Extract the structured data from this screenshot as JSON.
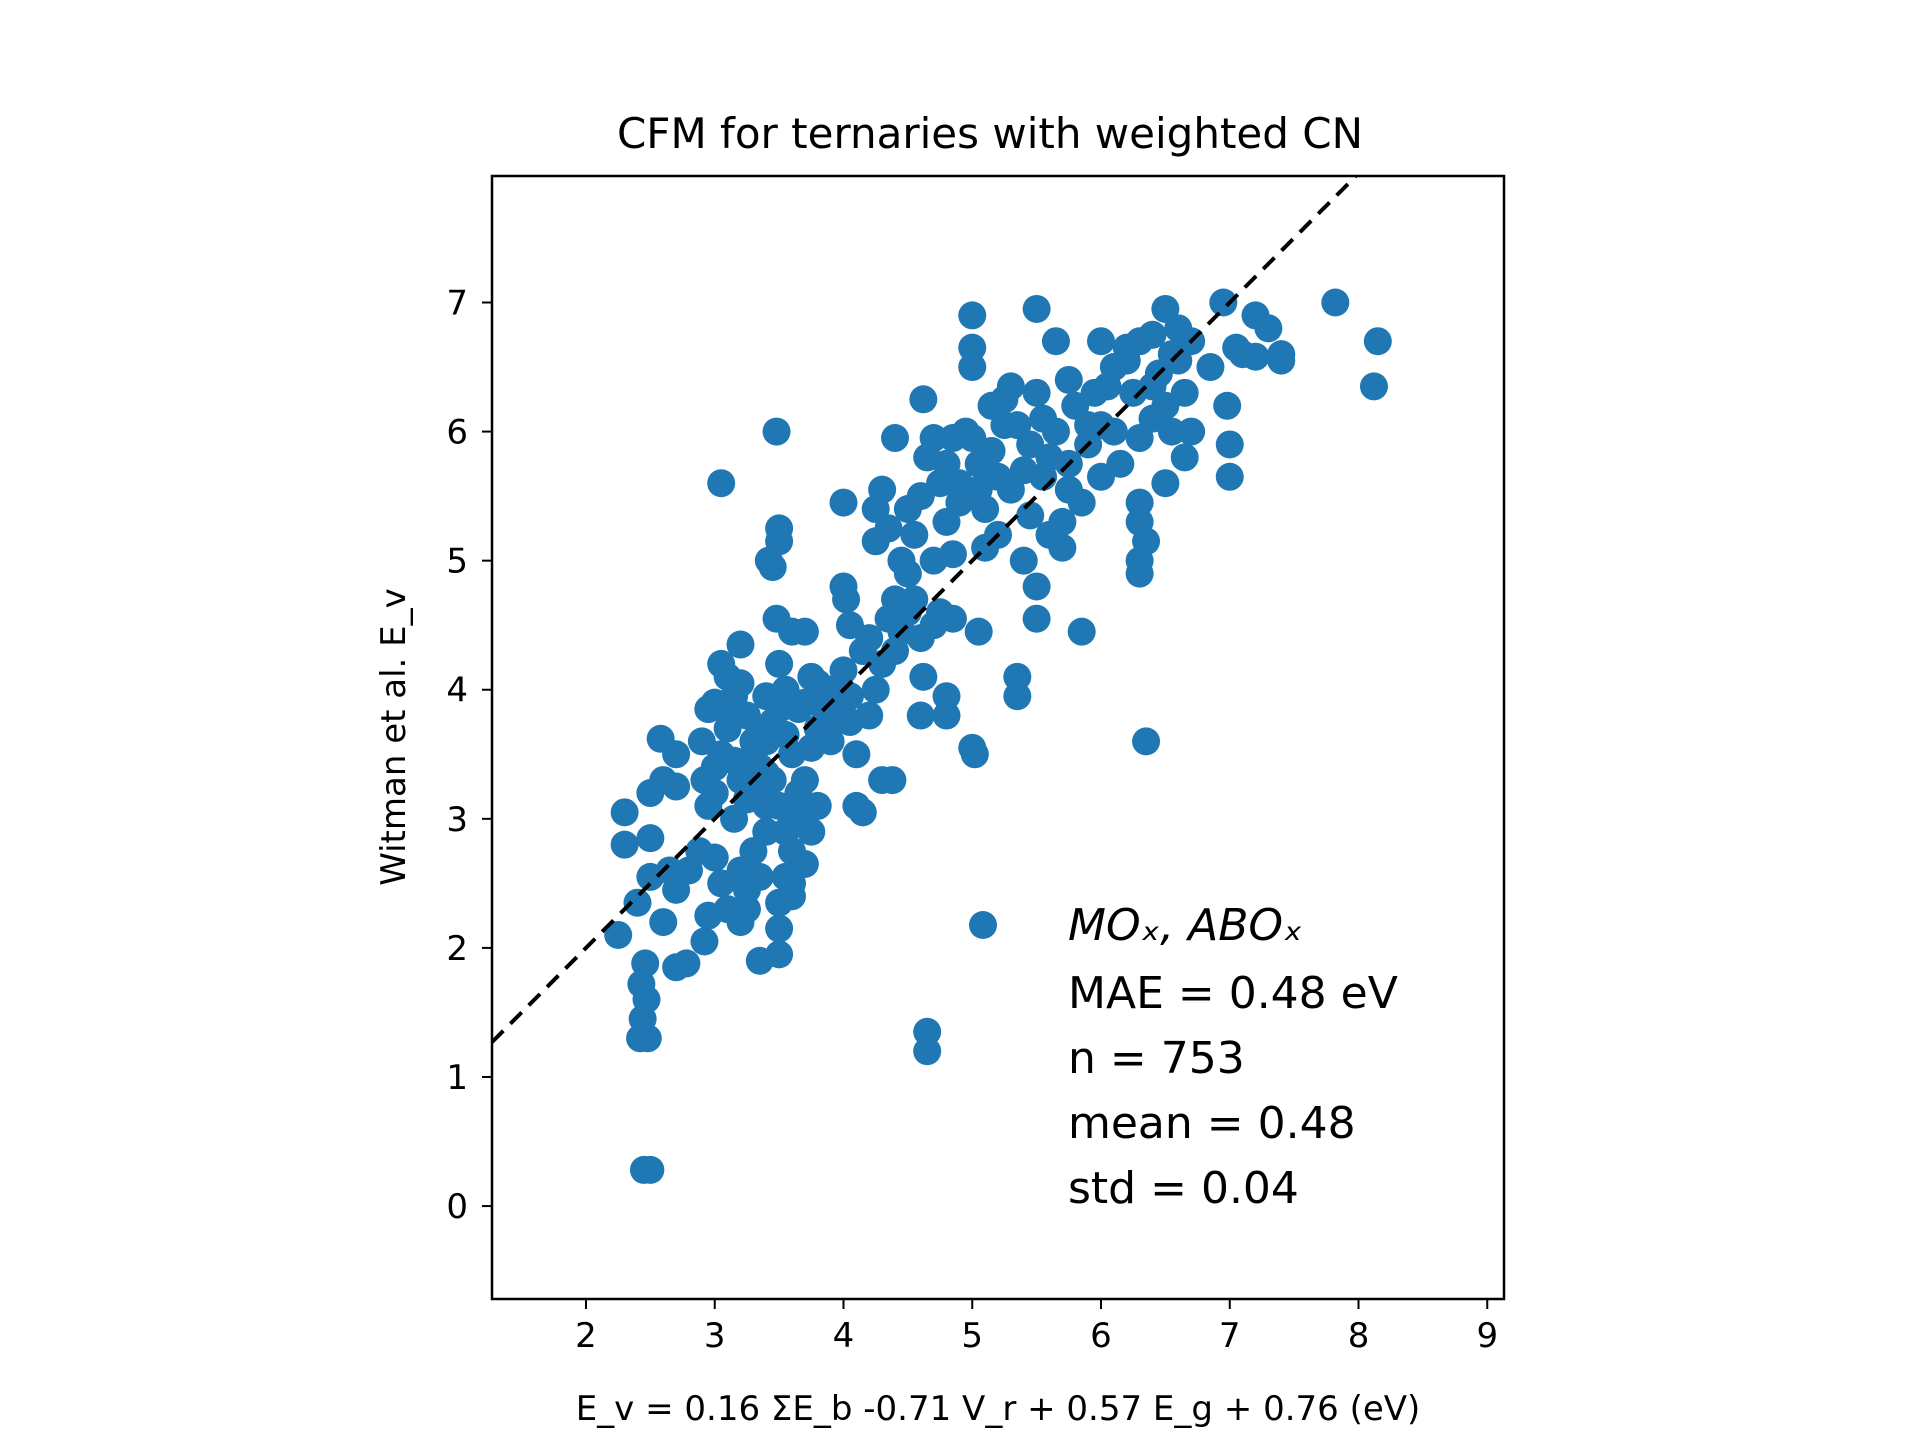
{
  "chart_data": {
    "type": "scatter",
    "title": "CFM for ternaries with weighted CN",
    "xlabel": "E_v = 0.16 ΣE_b -0.71 V_r + 0.57 E_g + 0.76 (eV)",
    "ylabel": "Witman et al. E_v",
    "xlim": [
      1.27,
      9.13
    ],
    "ylim": [
      -0.72,
      7.98
    ],
    "xticks": [
      2,
      3,
      4,
      5,
      6,
      7,
      8,
      9
    ],
    "yticks": [
      0,
      1,
      2,
      3,
      4,
      5,
      6,
      7
    ],
    "grid": false,
    "marker_color": "#1f77b4",
    "reference_line": {
      "style": "dashed",
      "color": "#000000",
      "slope": 1,
      "intercept": 0
    },
    "legend": {
      "placement": "lower-right",
      "series_name": "MOₓ, ABOₓ",
      "stats": [
        "MAE = 0.48 eV",
        "n = 753",
        "mean = 0.48",
        "std = 0.04"
      ]
    },
    "series": [
      {
        "name": "MOₓ, ABOₓ",
        "points": [
          [
            2.45,
            0.28
          ],
          [
            2.5,
            0.28
          ],
          [
            2.42,
            1.3
          ],
          [
            2.48,
            1.3
          ],
          [
            2.44,
            1.45
          ],
          [
            2.47,
            1.6
          ],
          [
            2.43,
            1.72
          ],
          [
            2.46,
            1.88
          ],
          [
            2.25,
            2.1
          ],
          [
            2.4,
            2.35
          ],
          [
            2.5,
            2.55
          ],
          [
            2.6,
            2.2
          ],
          [
            2.3,
            2.8
          ],
          [
            2.3,
            3.05
          ],
          [
            2.5,
            2.85
          ],
          [
            2.5,
            3.2
          ],
          [
            2.6,
            3.3
          ],
          [
            2.58,
            3.62
          ],
          [
            2.7,
            3.5
          ],
          [
            2.7,
            3.25
          ],
          [
            2.65,
            2.6
          ],
          [
            2.7,
            2.45
          ],
          [
            2.7,
            1.85
          ],
          [
            2.78,
            1.88
          ],
          [
            2.92,
            2.05
          ],
          [
            2.95,
            2.25
          ],
          [
            3.05,
            5.6
          ],
          [
            2.95,
            3.85
          ],
          [
            2.9,
            3.6
          ],
          [
            2.92,
            3.3
          ],
          [
            2.95,
            3.1
          ],
          [
            3.0,
            2.7
          ],
          [
            3.05,
            2.5
          ],
          [
            3.1,
            2.3
          ],
          [
            3.2,
            2.2
          ],
          [
            3.25,
            2.3
          ],
          [
            3.35,
            1.9
          ],
          [
            3.35,
            2.55
          ],
          [
            3.4,
            2.9
          ],
          [
            3.4,
            3.1
          ],
          [
            3.05,
            4.2
          ],
          [
            3.1,
            4.1
          ],
          [
            3.15,
            3.95
          ],
          [
            3.2,
            4.35
          ],
          [
            3.25,
            3.8
          ],
          [
            3.3,
            3.6
          ],
          [
            3.1,
            3.7
          ],
          [
            3.15,
            3.45
          ],
          [
            3.2,
            3.3
          ],
          [
            3.25,
            3.15
          ],
          [
            3.35,
            3.4
          ],
          [
            3.4,
            3.6
          ],
          [
            3.45,
            3.75
          ],
          [
            3.45,
            3.3
          ],
          [
            3.5,
            3.1
          ],
          [
            3.55,
            2.9
          ],
          [
            3.55,
            2.55
          ],
          [
            3.5,
            2.35
          ],
          [
            3.5,
            2.15
          ],
          [
            3.5,
            1.95
          ],
          [
            3.6,
            2.5
          ],
          [
            3.6,
            2.75
          ],
          [
            3.65,
            3.0
          ],
          [
            3.7,
            3.3
          ],
          [
            3.75,
            3.55
          ],
          [
            3.65,
            3.85
          ],
          [
            3.55,
            4.0
          ],
          [
            3.5,
            4.2
          ],
          [
            3.48,
            4.55
          ],
          [
            3.6,
            4.45
          ],
          [
            3.7,
            4.45
          ],
          [
            3.45,
            4.95
          ],
          [
            3.42,
            5.0
          ],
          [
            3.5,
            5.15
          ],
          [
            3.5,
            5.25
          ],
          [
            3.48,
            6.0
          ],
          [
            3.0,
            3.4
          ],
          [
            3.0,
            3.2
          ],
          [
            3.0,
            3.9
          ],
          [
            3.05,
            3.5
          ],
          [
            3.15,
            3.0
          ],
          [
            3.3,
            2.75
          ],
          [
            3.35,
            3.25
          ],
          [
            3.4,
            3.95
          ],
          [
            3.6,
            3.5
          ],
          [
            3.65,
            3.2
          ],
          [
            3.8,
            3.1
          ],
          [
            3.8,
            3.7
          ],
          [
            3.8,
            4.05
          ],
          [
            3.85,
            3.85
          ],
          [
            3.9,
            3.6
          ],
          [
            3.95,
            3.95
          ],
          [
            4.0,
            4.15
          ],
          [
            4.05,
            3.75
          ],
          [
            4.1,
            3.5
          ],
          [
            4.15,
            3.05
          ],
          [
            4.1,
            3.1
          ],
          [
            4.2,
            3.8
          ],
          [
            4.25,
            4.0
          ],
          [
            4.3,
            4.2
          ],
          [
            4.35,
            4.55
          ],
          [
            4.3,
            3.3
          ],
          [
            4.38,
            3.3
          ],
          [
            4.45,
            4.45
          ],
          [
            4.4,
            4.7
          ],
          [
            4.5,
            4.9
          ],
          [
            4.55,
            4.7
          ],
          [
            4.6,
            4.4
          ],
          [
            4.62,
            4.1
          ],
          [
            4.6,
            3.8
          ],
          [
            4.8,
            3.8
          ],
          [
            4.8,
            3.95
          ],
          [
            4.65,
            1.35
          ],
          [
            4.65,
            1.2
          ],
          [
            4.0,
            4.8
          ],
          [
            4.02,
            4.7
          ],
          [
            4.05,
            4.5
          ],
          [
            4.0,
            5.45
          ],
          [
            4.25,
            5.4
          ],
          [
            4.3,
            5.55
          ],
          [
            4.25,
            5.15
          ],
          [
            4.35,
            5.25
          ],
          [
            4.45,
            5.0
          ],
          [
            4.4,
            5.95
          ],
          [
            4.6,
            5.5
          ],
          [
            4.65,
            5.8
          ],
          [
            4.62,
            6.25
          ],
          [
            4.7,
            5.95
          ],
          [
            4.75,
            5.6
          ],
          [
            4.8,
            5.3
          ],
          [
            4.85,
            5.05
          ],
          [
            4.9,
            5.6
          ],
          [
            4.95,
            6.0
          ],
          [
            4.75,
            4.6
          ],
          [
            4.85,
            4.55
          ],
          [
            5.05,
            4.45
          ],
          [
            5.0,
            3.55
          ],
          [
            5.02,
            3.5
          ],
          [
            5.0,
            6.9
          ],
          [
            5.0,
            6.65
          ],
          [
            5.0,
            6.5
          ],
          [
            5.05,
            5.75
          ],
          [
            5.1,
            5.4
          ],
          [
            5.15,
            6.2
          ],
          [
            5.15,
            5.85
          ],
          [
            5.2,
            5.2
          ],
          [
            5.25,
            6.05
          ],
          [
            5.3,
            5.55
          ],
          [
            5.3,
            6.35
          ],
          [
            5.35,
            4.1
          ],
          [
            5.35,
            3.95
          ],
          [
            5.4,
            5.7
          ],
          [
            5.45,
            5.9
          ],
          [
            5.45,
            5.35
          ],
          [
            5.5,
            6.3
          ],
          [
            5.5,
            6.95
          ],
          [
            5.5,
            4.8
          ],
          [
            5.5,
            4.55
          ],
          [
            5.55,
            5.65
          ],
          [
            5.55,
            6.1
          ],
          [
            5.6,
            5.2
          ],
          [
            5.65,
            6.0
          ],
          [
            5.65,
            6.7
          ],
          [
            5.7,
            5.1
          ],
          [
            5.7,
            5.3
          ],
          [
            5.75,
            5.75
          ],
          [
            5.75,
            6.4
          ],
          [
            5.8,
            6.2
          ],
          [
            5.85,
            5.45
          ],
          [
            5.85,
            4.45
          ],
          [
            5.9,
            5.9
          ],
          [
            5.95,
            6.3
          ],
          [
            6.0,
            6.7
          ],
          [
            6.0,
            6.05
          ],
          [
            6.0,
            5.65
          ],
          [
            6.05,
            6.35
          ],
          [
            6.1,
            6.0
          ],
          [
            6.2,
            6.65
          ],
          [
            6.25,
            6.3
          ],
          [
            6.3,
            6.7
          ],
          [
            6.3,
            5.95
          ],
          [
            6.3,
            5.45
          ],
          [
            6.3,
            5.3
          ],
          [
            6.3,
            5.0
          ],
          [
            6.3,
            4.9
          ],
          [
            6.35,
            5.15
          ],
          [
            6.35,
            3.6
          ],
          [
            6.4,
            6.1
          ],
          [
            6.4,
            6.75
          ],
          [
            6.45,
            6.45
          ],
          [
            6.5,
            6.95
          ],
          [
            6.5,
            6.2
          ],
          [
            6.5,
            5.6
          ],
          [
            6.55,
            6.0
          ],
          [
            6.6,
            6.55
          ],
          [
            6.6,
            6.8
          ],
          [
            6.65,
            6.3
          ],
          [
            6.65,
            5.8
          ],
          [
            6.7,
            6.0
          ],
          [
            6.85,
            6.5
          ],
          [
            6.95,
            7.0
          ],
          [
            6.98,
            6.2
          ],
          [
            7.0,
            5.9
          ],
          [
            7.0,
            5.65
          ],
          [
            7.05,
            6.65
          ],
          [
            7.1,
            6.6
          ],
          [
            7.2,
            6.9
          ],
          [
            7.3,
            6.8
          ],
          [
            7.2,
            6.58
          ],
          [
            7.4,
            6.6
          ],
          [
            7.4,
            6.55
          ],
          [
            7.82,
            7.0
          ],
          [
            8.15,
            6.7
          ],
          [
            8.12,
            6.35
          ],
          [
            4.5,
            5.4
          ],
          [
            4.55,
            5.2
          ],
          [
            4.7,
            5.0
          ],
          [
            4.8,
            5.75
          ],
          [
            4.85,
            5.95
          ],
          [
            4.9,
            5.45
          ],
          [
            5.0,
            5.95
          ],
          [
            5.05,
            5.55
          ],
          [
            5.1,
            5.1
          ],
          [
            5.2,
            5.65
          ],
          [
            5.25,
            6.25
          ],
          [
            5.35,
            6.05
          ],
          [
            5.4,
            5.0
          ],
          [
            5.6,
            5.8
          ],
          [
            5.75,
            5.55
          ],
          [
            5.9,
            6.05
          ],
          [
            6.1,
            6.5
          ],
          [
            6.15,
            5.75
          ],
          [
            6.2,
            6.55
          ],
          [
            6.4,
            6.35
          ],
          [
            6.55,
            6.6
          ],
          [
            6.7,
            6.7
          ],
          [
            3.2,
            2.6
          ],
          [
            3.3,
            3.5
          ],
          [
            3.4,
            3.35
          ],
          [
            3.25,
            2.45
          ],
          [
            3.6,
            2.4
          ],
          [
            3.7,
            2.65
          ],
          [
            3.75,
            2.9
          ],
          [
            2.8,
            2.6
          ],
          [
            2.88,
            2.75
          ],
          [
            3.1,
            3.85
          ],
          [
            3.2,
            4.05
          ],
          [
            3.35,
            3.7
          ],
          [
            3.5,
            3.85
          ],
          [
            3.55,
            3.65
          ],
          [
            3.7,
            3.9
          ],
          [
            3.75,
            4.1
          ],
          [
            3.9,
            4.0
          ],
          [
            3.95,
            3.8
          ],
          [
            4.05,
            3.95
          ],
          [
            4.15,
            4.3
          ],
          [
            4.2,
            4.4
          ],
          [
            4.4,
            4.3
          ],
          [
            4.5,
            4.6
          ],
          [
            4.7,
            4.5
          ]
        ]
      }
    ]
  }
}
